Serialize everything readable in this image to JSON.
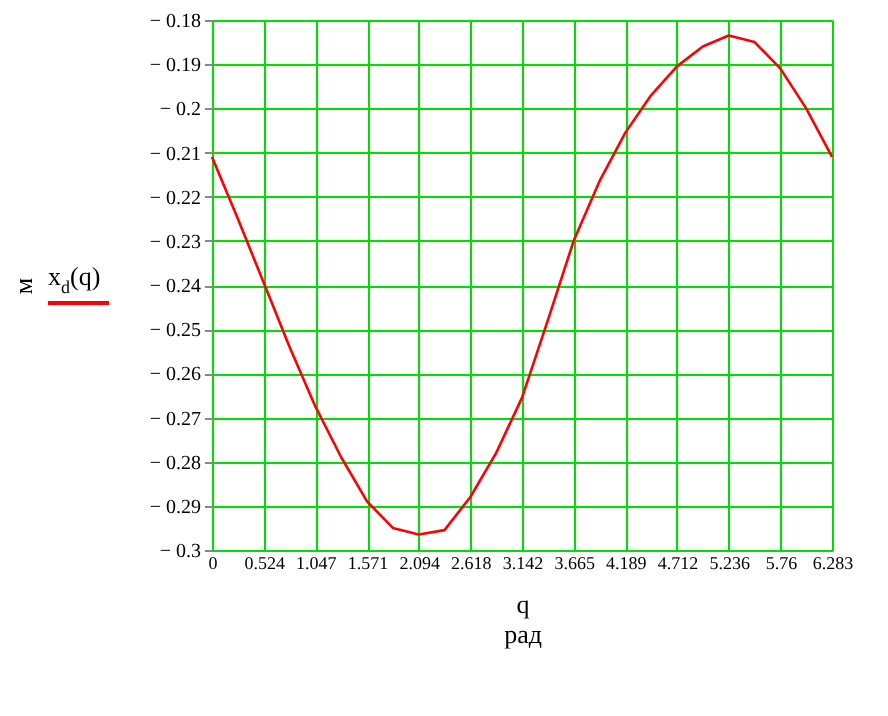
{
  "chart_data": {
    "type": "line",
    "xlabel": "q",
    "ylabel": "м",
    "annotations": [
      "рад"
    ],
    "x": [
      0,
      0.262,
      0.524,
      0.785,
      1.047,
      1.309,
      1.571,
      1.833,
      2.094,
      2.356,
      2.618,
      2.88,
      3.142,
      3.403,
      3.665,
      3.927,
      4.189,
      4.451,
      4.712,
      4.974,
      5.236,
      5.498,
      5.76,
      6.021,
      6.283
    ],
    "series": [
      {
        "name": "x$_{d}$(q)",
        "color": "#ff0000",
        "values": [
          -0.211,
          -0.225,
          -0.2395,
          -0.254,
          -0.2675,
          -0.279,
          -0.289,
          -0.295,
          -0.2965,
          -0.2955,
          -0.288,
          -0.278,
          -0.2655,
          -0.248,
          -0.23,
          -0.2165,
          -0.2055,
          -0.197,
          -0.1905,
          -0.186,
          -0.1835,
          -0.185,
          -0.191,
          -0.2,
          -0.211
        ]
      }
    ],
    "xlim": [
      0,
      6.283
    ],
    "xticks": [
      0,
      0.524,
      1.047,
      1.571,
      2.094,
      2.618,
      3.142,
      3.665,
      4.189,
      4.712,
      5.236,
      5.76,
      6.283
    ],
    "ylim": [
      -0.3,
      -0.18
    ],
    "yticks": [
      {
        "value": -0.3,
        "label": "− 0.3"
      },
      {
        "value": -0.29,
        "label": "− 0.29"
      },
      {
        "value": -0.28,
        "label": "− 0.28"
      },
      {
        "value": -0.27,
        "label": "− 0.27"
      },
      {
        "value": -0.26,
        "label": "− 0.26"
      },
      {
        "value": -0.25,
        "label": "− 0.25"
      },
      {
        "value": -0.24,
        "label": "− 0.24"
      },
      {
        "value": -0.23,
        "label": "− 0.23"
      },
      {
        "value": -0.22,
        "label": "− 0.22"
      },
      {
        "value": -0.21,
        "label": "− 0.21"
      },
      {
        "value": -0.2,
        "label": "− 0.2"
      },
      {
        "value": -0.19,
        "label": "− 0.19"
      },
      {
        "value": -0.18,
        "label": "− 0.18"
      }
    ],
    "grid": true,
    "legend": "left",
    "marker": "none",
    "line_style": "solid"
  }
}
